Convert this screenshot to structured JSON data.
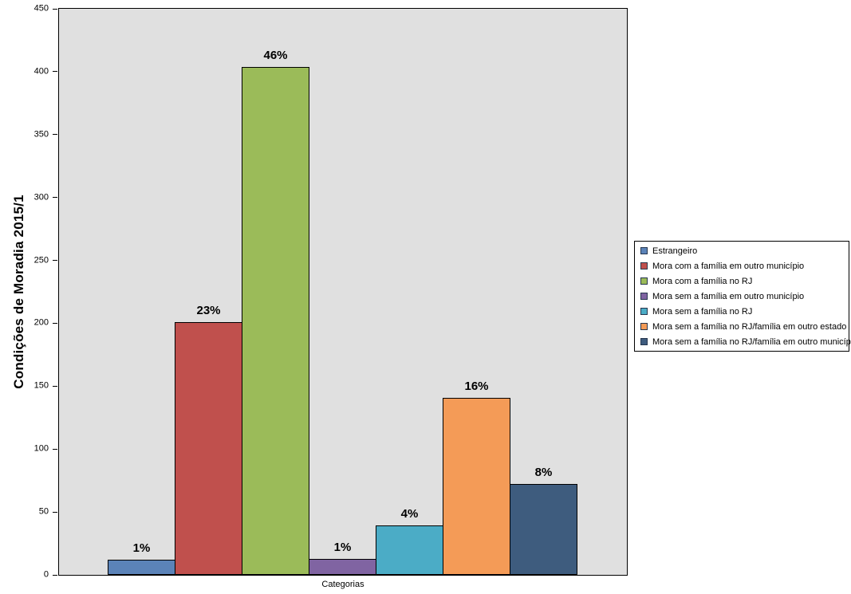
{
  "chart_data": {
    "type": "bar",
    "title": "Condições de Moradia 2015/1",
    "xlabel": "Categorias",
    "ylabel": "",
    "ylim": [
      0,
      450
    ],
    "yticks": [
      0,
      50,
      100,
      150,
      200,
      250,
      300,
      350,
      400,
      450
    ],
    "grid": "off",
    "plot_background": "#E0E0E0",
    "legend_position": "right",
    "categories": [
      "Estrangeiro",
      "Mora com a família em outro município",
      "Mora com a família no RJ",
      "Mora sem a família em outro município",
      "Mora sem a família no RJ",
      "Mora sem a família no RJ/família em outro estado",
      "Mora sem a família no RJ/família em outro município"
    ],
    "values": [
      12,
      201,
      404,
      13,
      39,
      141,
      72
    ],
    "bar_labels": [
      "1%",
      "23%",
      "46%",
      "1%",
      "4%",
      "16%",
      "8%"
    ],
    "colors": [
      "#5B83B8",
      "#C0504D",
      "#9BBB59",
      "#8064A2",
      "#4BACC6",
      "#F49B57",
      "#3E5C7E"
    ]
  }
}
